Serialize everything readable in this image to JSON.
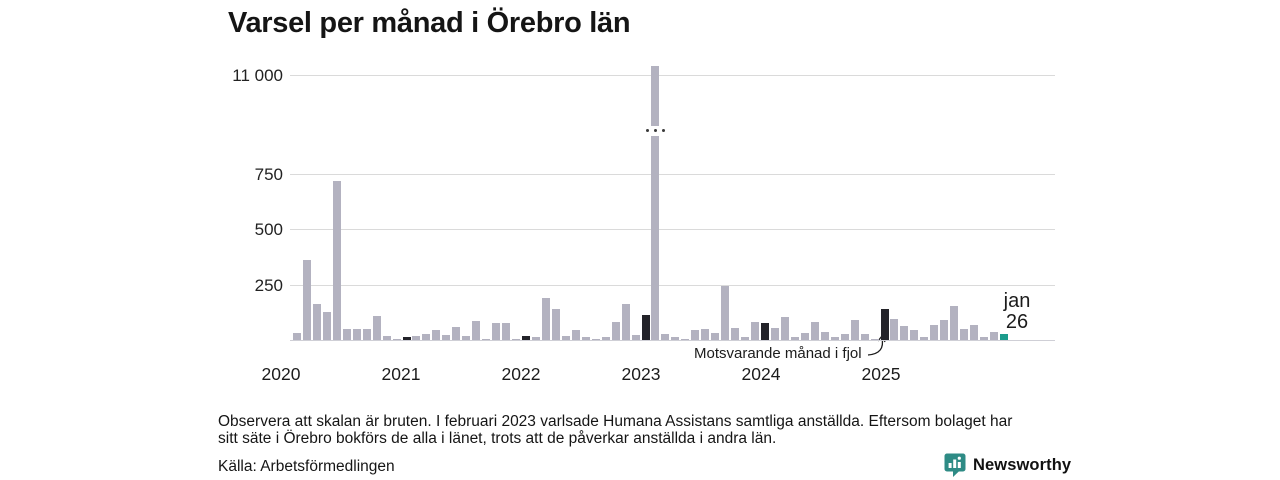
{
  "title": "Varsel per månad i Örebro län",
  "chart_data": {
    "type": "bar",
    "title": "Varsel per månad i Örebro län",
    "ylabel": "",
    "xlabel": "",
    "broken_axis": true,
    "axis_break_between": [
      800,
      11000
    ],
    "grid": "horizontal",
    "y_ticks": [
      {
        "label": "11 000",
        "value": 11000
      },
      {
        "label": "750",
        "value": 750
      },
      {
        "label": "500",
        "value": 500
      },
      {
        "label": "250",
        "value": 250
      }
    ],
    "x_tick_labels": [
      "2020",
      "2021",
      "2022",
      "2023",
      "2024",
      "2025"
    ],
    "months": [
      "feb 2020",
      "mar 2020",
      "apr 2020",
      "maj 2020",
      "jun 2020",
      "jul 2020",
      "aug 2020",
      "sep 2020",
      "okt 2020",
      "nov 2020",
      "dec 2020",
      "jan 2021",
      "feb 2021",
      "mar 2021",
      "apr 2021",
      "maj 2021",
      "jun 2021",
      "jul 2021",
      "aug 2021",
      "sep 2021",
      "okt 2021",
      "nov 2021",
      "dec 2021",
      "jan 2022",
      "feb 2022",
      "mar 2022",
      "apr 2022",
      "maj 2022",
      "jun 2022",
      "jul 2022",
      "aug 2022",
      "sep 2022",
      "okt 2022",
      "nov 2022",
      "dec 2022",
      "jan 2023",
      "feb 2023",
      "mar 2023",
      "apr 2023",
      "maj 2023",
      "jun 2023",
      "jul 2023",
      "aug 2023",
      "sep 2023",
      "okt 2023",
      "nov 2023",
      "dec 2023",
      "jan 2024",
      "feb 2024",
      "mar 2024",
      "apr 2024",
      "maj 2024",
      "jun 2024",
      "jul 2024",
      "aug 2024",
      "sep 2024",
      "okt 2024",
      "nov 2024",
      "dec 2024",
      "jan 2025",
      "feb 2025",
      "mar 2025",
      "apr 2025",
      "maj 2025",
      "jun 2025",
      "jul 2025",
      "aug 2025",
      "sep 2025",
      "okt 2025",
      "nov 2025",
      "dec 2025",
      "jan 2026"
    ],
    "values": [
      33,
      360,
      162,
      125,
      715,
      48,
      48,
      50,
      108,
      20,
      3,
      13,
      17,
      27,
      45,
      22,
      57,
      20,
      84,
      6,
      78,
      78,
      2,
      19,
      12,
      190,
      138,
      18,
      44,
      13,
      2,
      15,
      79,
      162,
      21,
      113,
      11100,
      26,
      15,
      5,
      45,
      50,
      30,
      245,
      55,
      15,
      80,
      78,
      52,
      102,
      15,
      32,
      80,
      38,
      15,
      26,
      92,
      29,
      4,
      140,
      95,
      62,
      45,
      12,
      66,
      88,
      155,
      51,
      66,
      15,
      37,
      28
    ],
    "kinds": [
      "n",
      "n",
      "n",
      "n",
      "n",
      "n",
      "n",
      "n",
      "n",
      "n",
      "n",
      "j",
      "n",
      "n",
      "n",
      "n",
      "n",
      "n",
      "n",
      "n",
      "n",
      "n",
      "n",
      "j",
      "n",
      "n",
      "n",
      "n",
      "n",
      "n",
      "n",
      "n",
      "n",
      "n",
      "n",
      "j",
      "n",
      "n",
      "n",
      "n",
      "n",
      "n",
      "n",
      "n",
      "n",
      "n",
      "n",
      "j",
      "n",
      "n",
      "n",
      "n",
      "n",
      "n",
      "n",
      "n",
      "n",
      "n",
      "n",
      "j",
      "n",
      "n",
      "n",
      "n",
      "n",
      "n",
      "n",
      "n",
      "n",
      "n",
      "n",
      "c"
    ],
    "annotation": "Motsvarande månad i fjol",
    "last_point_label_line1": "jan",
    "last_point_label_line2": "26",
    "colors": {
      "bar_normal": "#b3b2c0",
      "bar_january_prior": "#232329",
      "bar_current": "#1b9c8c",
      "gridline": "#dadada",
      "text": "#1c1c1c"
    }
  },
  "footer": {
    "note_line1": "Observera att skalan är bruten. I februari 2023 varlsade Humana Assistans samtliga anställda. Eftersom bolaget har",
    "note_line2": "sitt säte i Örebro bokförs de alla i länet, trots att de påverkar anställda i andra län.",
    "source": "Källa: Arbetsförmedlingen"
  },
  "branding": {
    "name": "Newsworthy",
    "color": "#2e8b85"
  }
}
